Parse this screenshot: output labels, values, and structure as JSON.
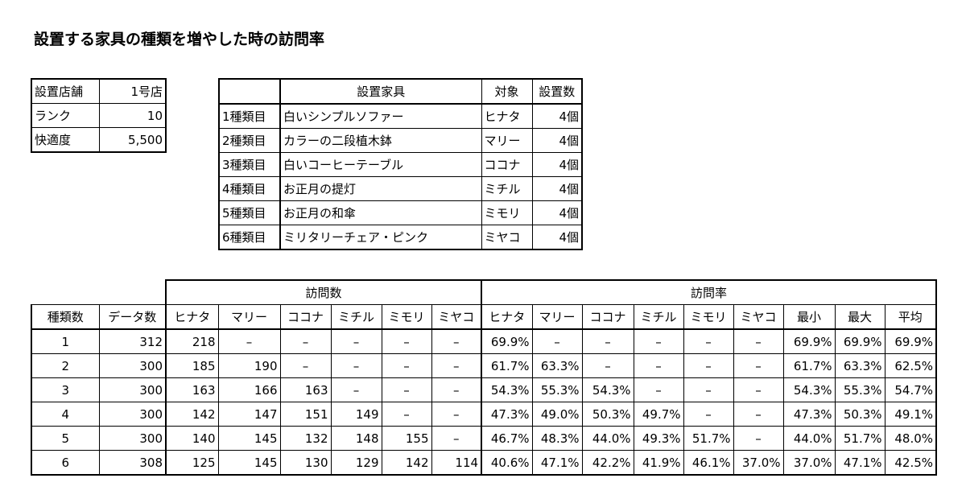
{
  "title": "設置する家具の種類を増やした時の訪問率",
  "store_table": {
    "rows": [
      [
        "設置店舗",
        "1号店"
      ],
      [
        "ランク",
        "10"
      ],
      [
        "快適度",
        "5,500"
      ]
    ]
  },
  "furniture_table": {
    "header": [
      "設置家具",
      "対象",
      "設置数"
    ],
    "rows": [
      [
        "1種類目",
        "白いシンプルソファー",
        "ヒナタ",
        "4個"
      ],
      [
        "2種類目",
        "カラーの二段植木鉢",
        "マリー",
        "4個"
      ],
      [
        "3種類目",
        "白いコーヒーテーブル",
        "ココナ",
        "4個"
      ],
      [
        "4種類目",
        "お正月の提灯",
        "ミチル",
        "4個"
      ],
      [
        "5種類目",
        "お正月の和傘",
        "ミモリ",
        "4個"
      ],
      [
        "6種類目",
        "ミリタリーチェア・ピンク",
        "ミヤコ",
        "4個"
      ]
    ]
  },
  "visit_table": {
    "group_headers": [
      "訪問数",
      "訪問率"
    ],
    "columns": [
      "種類数",
      "データ数",
      "ヒナタ",
      "マリー",
      "ココナ",
      "ミチル",
      "ミモリ",
      "ミヤコ",
      "ヒナタ",
      "マリー",
      "ココナ",
      "ミチル",
      "ミモリ",
      "ミヤコ",
      "最小",
      "最大",
      "平均"
    ],
    "rows": [
      [
        "1",
        "312",
        "218",
        "–",
        "–",
        "–",
        "–",
        "–",
        "69.9%",
        "–",
        "–",
        "–",
        "–",
        "–",
        "69.9%",
        "69.9%",
        "69.9%"
      ],
      [
        "2",
        "300",
        "185",
        "190",
        "–",
        "–",
        "–",
        "–",
        "61.7%",
        "63.3%",
        "–",
        "–",
        "–",
        "–",
        "61.7%",
        "63.3%",
        "62.5%"
      ],
      [
        "3",
        "300",
        "163",
        "166",
        "163",
        "–",
        "–",
        "–",
        "54.3%",
        "55.3%",
        "54.3%",
        "–",
        "–",
        "–",
        "54.3%",
        "55.3%",
        "54.7%"
      ],
      [
        "4",
        "300",
        "142",
        "147",
        "151",
        "149",
        "–",
        "–",
        "47.3%",
        "49.0%",
        "50.3%",
        "49.7%",
        "–",
        "–",
        "47.3%",
        "50.3%",
        "49.1%"
      ],
      [
        "5",
        "300",
        "140",
        "145",
        "132",
        "148",
        "155",
        "–",
        "46.7%",
        "48.3%",
        "44.0%",
        "49.3%",
        "51.7%",
        "–",
        "44.0%",
        "51.7%",
        "48.0%"
      ],
      [
        "6",
        "308",
        "125",
        "145",
        "130",
        "129",
        "142",
        "114",
        "40.6%",
        "47.1%",
        "42.2%",
        "41.9%",
        "46.1%",
        "37.0%",
        "37.0%",
        "47.1%",
        "42.5%"
      ]
    ]
  }
}
